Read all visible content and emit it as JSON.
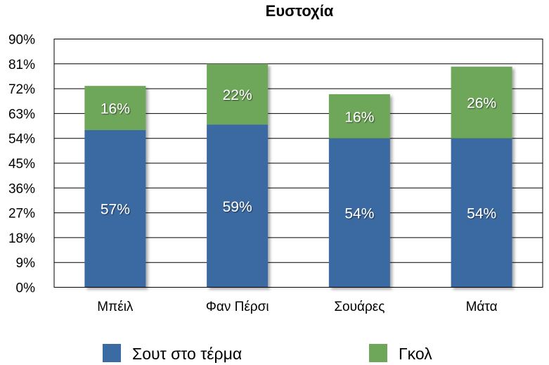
{
  "chart_data": {
    "type": "bar",
    "stacked": true,
    "title": "Ευστοχία",
    "categories": [
      "Μπέιλ",
      "Φαν Πέρσι",
      "Σουάρες",
      "Μάτα"
    ],
    "series": [
      {
        "name": "Σουτ στο τέρμα",
        "color": "#3a6ba3",
        "values": [
          57,
          59,
          54,
          54
        ],
        "labels": [
          "57%",
          "59%",
          "54%",
          "54%"
        ]
      },
      {
        "name": "Γκολ",
        "color": "#6ea65a",
        "values": [
          16,
          22,
          16,
          26
        ],
        "labels": [
          "16%",
          "22%",
          "16%",
          "26%"
        ]
      }
    ],
    "ylim": [
      0,
      90
    ],
    "yticks": [
      0,
      9,
      18,
      27,
      36,
      45,
      54,
      63,
      72,
      81,
      90
    ],
    "ytick_labels": [
      "0%",
      "9%",
      "18%",
      "27%",
      "36%",
      "45%",
      "54%",
      "63%",
      "72%",
      "81%",
      "90%"
    ],
    "grid": true,
    "legend": "bottom"
  }
}
